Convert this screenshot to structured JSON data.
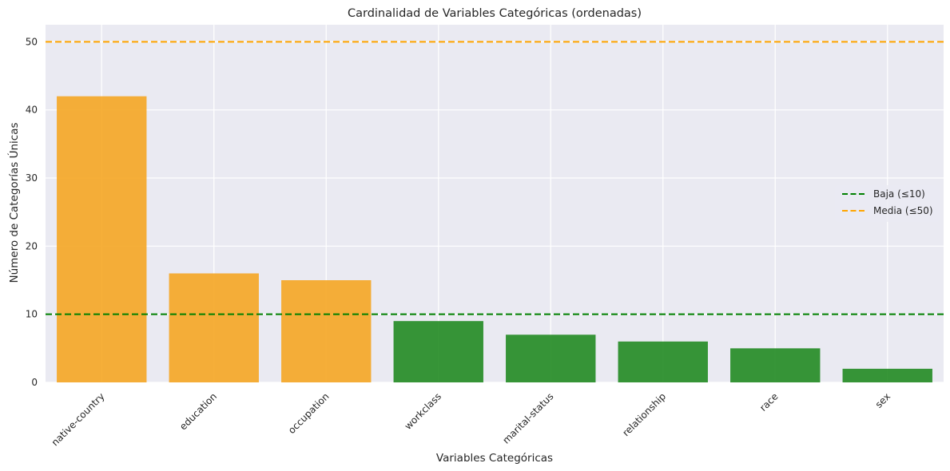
{
  "chart_data": {
    "type": "bar",
    "title": "Cardinalidad de Variables Categóricas (ordenadas)",
    "xlabel": "Variables Categóricas",
    "ylabel": "Número de Categorías Únicas",
    "categories": [
      "native-country",
      "education",
      "occupation",
      "workclass",
      "marital-status",
      "relationship",
      "race",
      "sex"
    ],
    "values": [
      42,
      16,
      15,
      9,
      7,
      6,
      5,
      2
    ],
    "bar_colors": [
      "#f5a623",
      "#f5a623",
      "#f5a623",
      "#228b22",
      "#228b22",
      "#228b22",
      "#228b22",
      "#228b22"
    ],
    "ylim": [
      0,
      52.5
    ],
    "yticks": [
      0,
      10,
      20,
      30,
      40,
      50
    ],
    "grid": true,
    "reference_lines": [
      {
        "name": "Baja (≤10)",
        "value": 10,
        "color": "#008000",
        "style": "dashed"
      },
      {
        "name": "Media (≤50)",
        "value": 50,
        "color": "#ffa500",
        "style": "dashed"
      }
    ],
    "legend_position": "center-right"
  }
}
